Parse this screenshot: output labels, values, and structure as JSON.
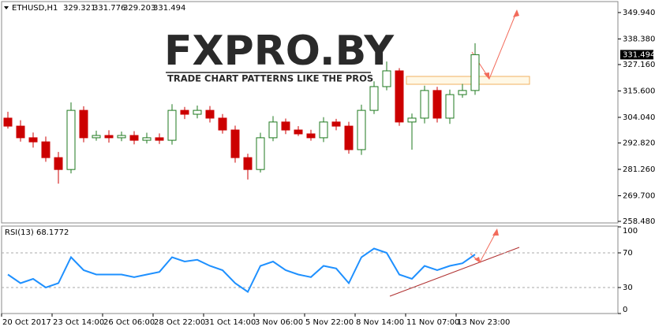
{
  "watermark": {
    "title": "FXPRO.BY",
    "tagline": "TRADE CHART PATTERNS LIKE THE PROS"
  },
  "chart_data": [
    {
      "type": "candlestick",
      "symbol": "ETHUSD,H1",
      "header_ohlc": [
        329.321,
        331.776,
        329.203,
        331.494
      ],
      "categories": [
        "20 Oct 2017",
        null,
        null,
        null,
        "23 Oct 14:00",
        null,
        null,
        null,
        "26 Oct 06:00",
        null,
        null,
        null,
        "28 Oct 22:00",
        null,
        null,
        null,
        "31 Oct 14:00",
        null,
        null,
        null,
        "3 Nov 06:00",
        null,
        null,
        null,
        "5 Nov 22:00",
        null,
        null,
        null,
        "8 Nov 14:00",
        null,
        null,
        null,
        "11 Nov 07:00",
        null,
        null,
        null,
        "13 Nov 23:00",
        null
      ],
      "open": [
        303.7,
        300.2,
        295.1,
        293.3,
        286.4,
        281.2,
        307.1,
        295.1,
        296.1,
        295.1,
        296.1,
        294.0,
        295.1,
        294.0,
        307.1,
        305.4,
        307.1,
        303.7,
        298.5,
        286.4,
        281.2,
        295.1,
        302.0,
        298.5,
        296.8,
        295.1,
        302.0,
        300.2,
        289.9,
        307.1,
        317.5,
        324.4,
        302.0,
        303.7,
        315.8,
        303.7,
        314.0,
        315.8
      ],
      "high": [
        306.5,
        302.8,
        297.4,
        295.6,
        288.9,
        310.6,
        308.9,
        298.2,
        298.4,
        297.8,
        298.0,
        297.3,
        297.0,
        309.8,
        308.6,
        309.2,
        309.0,
        305.5,
        300.4,
        288.1,
        297.3,
        304.6,
        303.5,
        300.2,
        298.6,
        304.1,
        303.4,
        302.1,
        309.6,
        319.8,
        328.5,
        325.6,
        305.7,
        317.9,
        317.4,
        316.2,
        318.7,
        336.5
      ],
      "low": [
        299.1,
        293.4,
        290.8,
        284.6,
        275.0,
        279.5,
        293.1,
        293.8,
        293.0,
        293.6,
        292.2,
        292.6,
        292.4,
        292.1,
        303.3,
        303.6,
        301.8,
        296.9,
        284.2,
        276.8,
        279.9,
        293.6,
        296.7,
        295.9,
        293.8,
        293.2,
        298.4,
        288.1,
        287.6,
        305.5,
        315.9,
        300.3,
        289.9,
        301.4,
        301.8,
        301.2,
        312.6,
        313.9
      ],
      "close": [
        300.2,
        295.1,
        293.3,
        286.4,
        281.2,
        307.1,
        295.1,
        296.1,
        295.1,
        296.1,
        294.0,
        295.1,
        294.0,
        307.1,
        305.4,
        307.1,
        303.7,
        298.5,
        286.4,
        281.2,
        295.1,
        302.0,
        298.5,
        296.8,
        295.1,
        302.0,
        300.2,
        289.9,
        307.1,
        317.5,
        324.4,
        302.0,
        303.7,
        315.8,
        303.7,
        314.0,
        315.8,
        331.494
      ],
      "up_color": "#1f7a1f",
      "down_color": "#cc0000",
      "ylim": [
        257.8,
        354.4
      ],
      "yticks": [
        {
          "value": 349.94,
          "label": "349.940"
        },
        {
          "value": 338.38,
          "label": "338.380"
        },
        {
          "value": 327.16,
          "label": "327.160"
        },
        {
          "value": 315.6,
          "label": "315.600"
        },
        {
          "value": 304.04,
          "label": "304.040"
        },
        {
          "value": 292.82,
          "label": "292.820"
        },
        {
          "value": 281.26,
          "label": "281.260"
        },
        {
          "value": 269.7,
          "label": "269.700"
        },
        {
          "value": 258.48,
          "label": "258.480"
        }
      ]
    },
    {
      "type": "line",
      "title": "RSI(13) 68.1772",
      "color": "#1e90ff",
      "values": [
        45,
        35,
        40,
        30,
        35,
        65,
        50,
        45,
        45,
        45,
        42,
        45,
        48,
        65,
        60,
        62,
        55,
        50,
        35,
        25,
        55,
        60,
        50,
        45,
        42,
        55,
        52,
        35,
        65,
        75,
        70,
        45,
        40,
        55,
        50,
        55,
        58,
        68.1772
      ],
      "ylim": [
        0,
        100
      ],
      "yticks": [
        100,
        70,
        30,
        0
      ],
      "grid_levels": [
        70,
        30
      ]
    }
  ]
}
